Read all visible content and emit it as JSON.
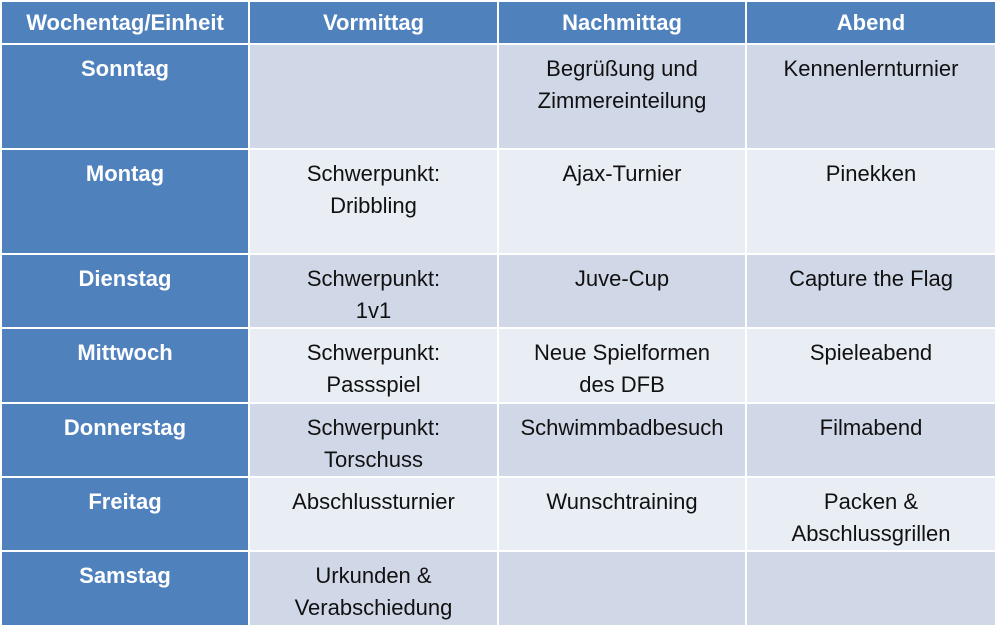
{
  "header": [
    "Wochentag/Einheit",
    "Vormittag",
    "Nachmittag",
    "Abend"
  ],
  "rows": [
    {
      "day": "Sonntag",
      "cells": [
        "",
        "Begrüßung und\nZimmereinteilung",
        "Kennenlernturnier"
      ]
    },
    {
      "day": "Montag",
      "cells": [
        "Schwerpunkt:\nDribbling",
        "Ajax-Turnier",
        "Pinekken"
      ]
    },
    {
      "day": "Dienstag",
      "cells": [
        "Schwerpunkt:\n1v1",
        "Juve-Cup",
        "Capture the Flag"
      ]
    },
    {
      "day": "Mittwoch",
      "cells": [
        "Schwerpunkt:\nPassspiel",
        "Neue Spielformen\ndes DFB",
        "Spieleabend"
      ]
    },
    {
      "day": "Donnerstag",
      "cells": [
        "Schwerpunkt:\nTorschuss",
        "Schwimmbadbesuch",
        "Filmabend"
      ]
    },
    {
      "day": "Freitag",
      "cells": [
        "Abschlussturnier",
        "Wunschtraining",
        "Packen &\nAbschlussgrillen"
      ]
    },
    {
      "day": "Samstag",
      "cells": [
        "Urkunden &\nVerabschiedung",
        "",
        ""
      ]
    }
  ],
  "colors": {
    "header": "#4f81bd",
    "band_a": "#d0d8e8",
    "band_b": "#e9edf4",
    "header_text": "#ffffff"
  }
}
